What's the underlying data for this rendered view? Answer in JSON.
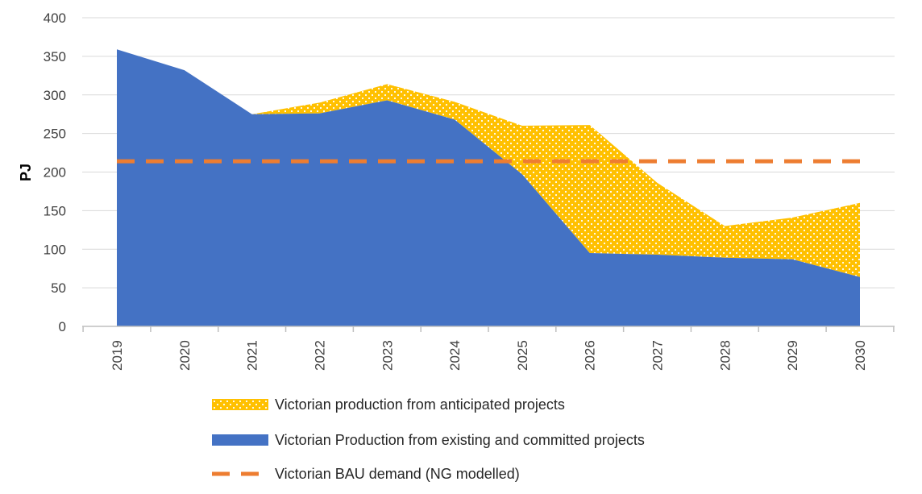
{
  "chart_data": {
    "type": "area",
    "categories": [
      "2019",
      "2020",
      "2021",
      "2022",
      "2023",
      "2024",
      "2025",
      "2026",
      "2027",
      "2028",
      "2029",
      "2030"
    ],
    "ylabel": "PJ",
    "ylim": [
      0,
      400
    ],
    "yticks": [
      "0",
      "50",
      "100",
      "150",
      "200",
      "250",
      "300",
      "350",
      "400"
    ],
    "grid": true,
    "legend_position": "bottom",
    "series": [
      {
        "name": "Victorian Production from existing and committed projects",
        "kind": "stacked-area",
        "color": "#4472C4",
        "values": [
          359,
          332,
          275,
          276,
          293,
          268,
          197,
          95,
          93,
          89,
          87,
          64
        ]
      },
      {
        "name": "Victorian production from anticipated projects",
        "kind": "stacked-area",
        "color": "#FFC000",
        "pattern": "dotted",
        "values": [
          0,
          0,
          0,
          14,
          21,
          23,
          63,
          166,
          93,
          41,
          54,
          96
        ]
      },
      {
        "name": "Victorian BAU demand (NG modelled)",
        "kind": "line",
        "style": "dashed",
        "color": "#ED7D31",
        "values": [
          214,
          214,
          214,
          214,
          214,
          214,
          214,
          214,
          214,
          214,
          214,
          214
        ]
      }
    ],
    "legend_order": [
      1,
      0,
      2
    ]
  }
}
